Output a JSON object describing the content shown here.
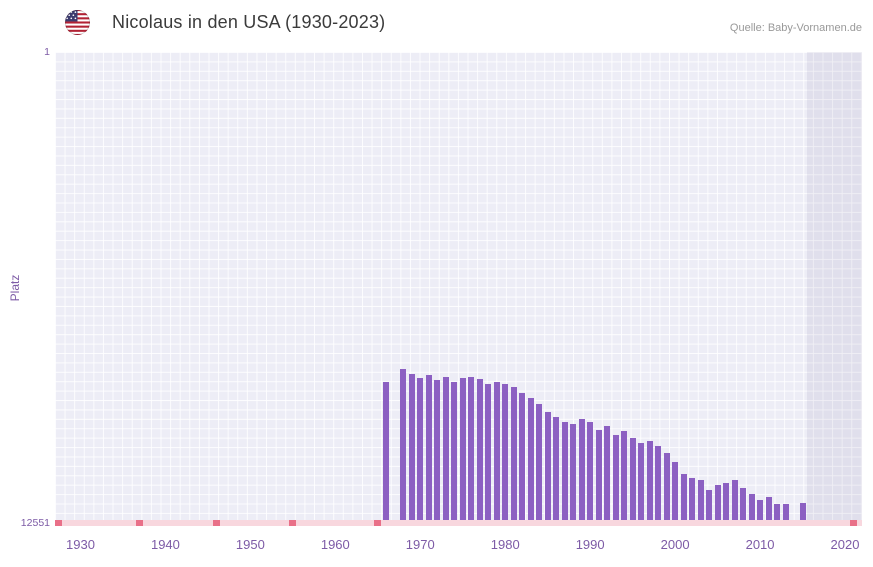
{
  "header": {
    "title": "Nicolaus in den USA (1930-2023)",
    "source": "Quelle: Baby-Vornamen.de",
    "flag_icon": "usa-flag-icon"
  },
  "chart_data": {
    "type": "bar",
    "title": "Nicolaus in den USA (1930-2023)",
    "xlabel": "",
    "ylabel": "Platz",
    "grid": true,
    "legend": false,
    "y_axis": {
      "top_label": "1",
      "bottom_label": "12551",
      "min": 1,
      "max": 12551,
      "inverted": true
    },
    "x_axis": {
      "domain": [
        1927,
        2022
      ],
      "ticks": [
        1930,
        1940,
        1950,
        1960,
        1970,
        1980,
        1990,
        2000,
        2010,
        2020
      ]
    },
    "colors": {
      "bar": "#8c60c2",
      "plot_background": "#ededf6",
      "grid_line": "#ffffff",
      "axis_text": "#7d5ba6",
      "baseline_strip": "#f8d7de",
      "unranked_mark": "#e97088",
      "recent_band": "rgba(98,86,148,0.09)",
      "title_text": "#3b3b3b",
      "source_text": "#999999"
    },
    "series": [
      {
        "year": 1966,
        "rank": 8800
      },
      {
        "year": 1968,
        "rank": 8450
      },
      {
        "year": 1969,
        "rank": 8580
      },
      {
        "year": 1970,
        "rank": 8690
      },
      {
        "year": 1971,
        "rank": 8610
      },
      {
        "year": 1972,
        "rank": 8740
      },
      {
        "year": 1973,
        "rank": 8660
      },
      {
        "year": 1974,
        "rank": 8790
      },
      {
        "year": 1975,
        "rank": 8690
      },
      {
        "year": 1976,
        "rank": 8660
      },
      {
        "year": 1977,
        "rank": 8710
      },
      {
        "year": 1978,
        "rank": 8850
      },
      {
        "year": 1979,
        "rank": 8790
      },
      {
        "year": 1980,
        "rank": 8850
      },
      {
        "year": 1981,
        "rank": 8930
      },
      {
        "year": 1982,
        "rank": 9090
      },
      {
        "year": 1983,
        "rank": 9220
      },
      {
        "year": 1984,
        "rank": 9380
      },
      {
        "year": 1985,
        "rank": 9590
      },
      {
        "year": 1986,
        "rank": 9730
      },
      {
        "year": 1987,
        "rank": 9860
      },
      {
        "year": 1988,
        "rank": 9910
      },
      {
        "year": 1989,
        "rank": 9780
      },
      {
        "year": 1990,
        "rank": 9860
      },
      {
        "year": 1991,
        "rank": 10070
      },
      {
        "year": 1992,
        "rank": 9970
      },
      {
        "year": 1993,
        "rank": 10210
      },
      {
        "year": 1994,
        "rank": 10100
      },
      {
        "year": 1995,
        "rank": 10290
      },
      {
        "year": 1996,
        "rank": 10420
      },
      {
        "year": 1997,
        "rank": 10370
      },
      {
        "year": 1998,
        "rank": 10500
      },
      {
        "year": 1999,
        "rank": 10690
      },
      {
        "year": 2000,
        "rank": 10930
      },
      {
        "year": 2001,
        "rank": 11250
      },
      {
        "year": 2002,
        "rank": 11350
      },
      {
        "year": 2003,
        "rank": 11410
      },
      {
        "year": 2004,
        "rank": 11670
      },
      {
        "year": 2005,
        "rank": 11540
      },
      {
        "year": 2006,
        "rank": 11490
      },
      {
        "year": 2007,
        "rank": 11410
      },
      {
        "year": 2008,
        "rank": 11620
      },
      {
        "year": 2009,
        "rank": 11780
      },
      {
        "year": 2010,
        "rank": 11940
      },
      {
        "year": 2011,
        "rank": 11860
      },
      {
        "year": 2012,
        "rank": 12050
      },
      {
        "year": 2013,
        "rank": 12050
      },
      {
        "year": 2015,
        "rank": 12020
      }
    ],
    "unranked_years": [
      1927,
      1937,
      1946,
      1955,
      1965,
      2021
    ],
    "recent_band_years": [
      2015.5,
      2022
    ]
  }
}
